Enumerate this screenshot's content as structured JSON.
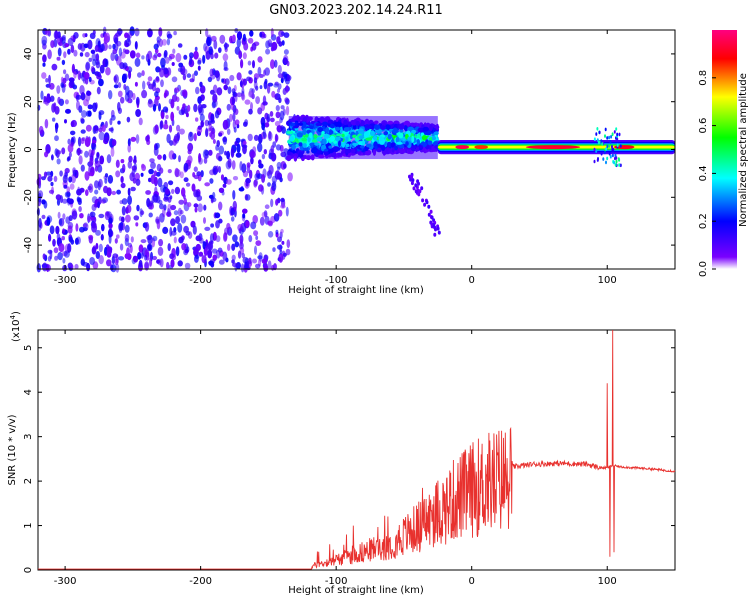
{
  "title": "GN03.2023.202.14.24.R11",
  "colors": {
    "spectral_cmap": [
      "#ffffff",
      "#7a00ff",
      "#0000ff",
      "#00ffff",
      "#00ff00",
      "#ffff00",
      "#ff0000",
      "#ff0080"
    ],
    "snr_line": "#e8312e"
  },
  "chart_data": [
    {
      "type": "heatmap",
      "title": "GN03.2023.202.14.24.R11",
      "xlabel": "Height of straight line (km)",
      "ylabel": "Frequency (Hz)",
      "xlim": [
        -320,
        150
      ],
      "ylim": [
        -50,
        50
      ],
      "xticks": [
        -300,
        -200,
        -100,
        0,
        100
      ],
      "yticks": [
        -40,
        -20,
        0,
        20,
        40
      ],
      "xtick_labels": [
        "-300",
        "-200",
        "-100",
        "0",
        "100"
      ],
      "ytick_labels": [
        "-40",
        "-20",
        "0",
        "20",
        "40"
      ],
      "colorbar": {
        "label": "Normalized spectral amplitude",
        "range": [
          0,
          1
        ],
        "ticks": [
          0.0,
          0.2,
          0.4,
          0.6,
          0.8
        ],
        "tick_labels": [
          "0.0",
          "0.2",
          "0.4",
          "0.6",
          "0.8"
        ]
      },
      "regions": [
        {
          "x_from": -320,
          "x_to": -135,
          "freq_from": -50,
          "freq_to": 50,
          "description": "broadband noise, amplitude ~0.1-0.25"
        },
        {
          "x_from": -135,
          "x_to": -25,
          "freq_center": 5,
          "freq_halfwidth": 9,
          "amplitude_peak": 0.4
        },
        {
          "x_from": -25,
          "x_to": 150,
          "freq_center": 1,
          "freq_halfwidth": 3,
          "amplitude_peak": 0.95
        }
      ],
      "tail": {
        "x": [
          -45,
          -25
        ],
        "freq": [
          -10,
          -35
        ]
      }
    },
    {
      "type": "line",
      "xlabel": "Height of straight line (km)",
      "ylabel": "SNR (10 * v/v)",
      "multiplier": "(x10",
      "multiplier_exp": "4",
      "multiplier_close": ")",
      "xlim": [
        -320,
        150
      ],
      "ylim": [
        0,
        5.4
      ],
      "xticks": [
        -300,
        -200,
        -100,
        0,
        100
      ],
      "yticks": [
        0,
        1,
        2,
        3,
        4,
        5
      ],
      "xtick_labels": [
        "-300",
        "-200",
        "-100",
        "0",
        "100"
      ],
      "ytick_labels": [
        "0",
        "1",
        "2",
        "3",
        "4",
        "5"
      ],
      "envelope": {
        "x": [
          -320,
          -130,
          -112,
          -100,
          -90,
          -80,
          -60,
          -45,
          -30,
          -15,
          0,
          10,
          25,
          45,
          65,
          85,
          95,
          100,
          104,
          110,
          130,
          150
        ],
        "y": [
          0.0,
          0.0,
          0.15,
          0.25,
          0.35,
          0.45,
          0.65,
          0.95,
          1.3,
          1.7,
          2.0,
          2.15,
          2.3,
          2.38,
          2.4,
          2.38,
          2.3,
          2.3,
          2.35,
          2.32,
          2.28,
          2.22
        ]
      },
      "spikes": [
        {
          "x": 100,
          "y": 4.2
        },
        {
          "x": 102,
          "y": 0.3
        },
        {
          "x": 104,
          "y": 5.4
        },
        {
          "x": 105,
          "y": 0.4
        }
      ]
    }
  ]
}
